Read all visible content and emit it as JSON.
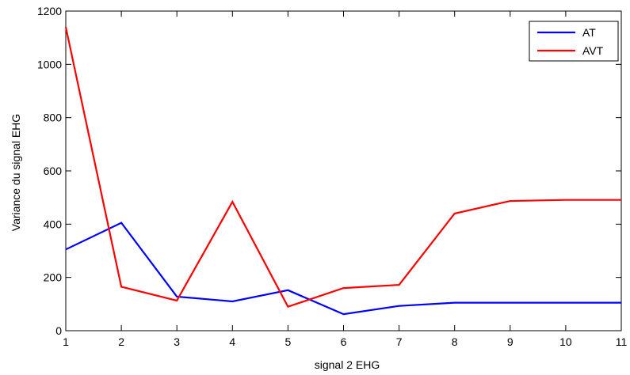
{
  "chart_data": {
    "type": "line",
    "title": "",
    "xlabel": "signal 2 EHG",
    "ylabel": "Variance du signal EHG",
    "xlim": [
      1,
      11
    ],
    "ylim": [
      0,
      1200
    ],
    "xticks": [
      1,
      2,
      3,
      4,
      5,
      6,
      7,
      8,
      9,
      10,
      11
    ],
    "yticks": [
      0,
      200,
      400,
      600,
      800,
      1000,
      1200
    ],
    "x": [
      1,
      2,
      3,
      4,
      5,
      6,
      7,
      8,
      9,
      10,
      11
    ],
    "grid": false,
    "legend_position": "top-right",
    "series": [
      {
        "name": "AT",
        "color": "#0000ff",
        "values": [
          305,
          405,
          128,
          110,
          152,
          62,
          93,
          105,
          105,
          105,
          105
        ]
      },
      {
        "name": "AVT",
        "color": "#ff0000",
        "values": [
          1140,
          165,
          113,
          484,
          90,
          160,
          172,
          440,
          487,
          491,
          491
        ]
      }
    ]
  }
}
